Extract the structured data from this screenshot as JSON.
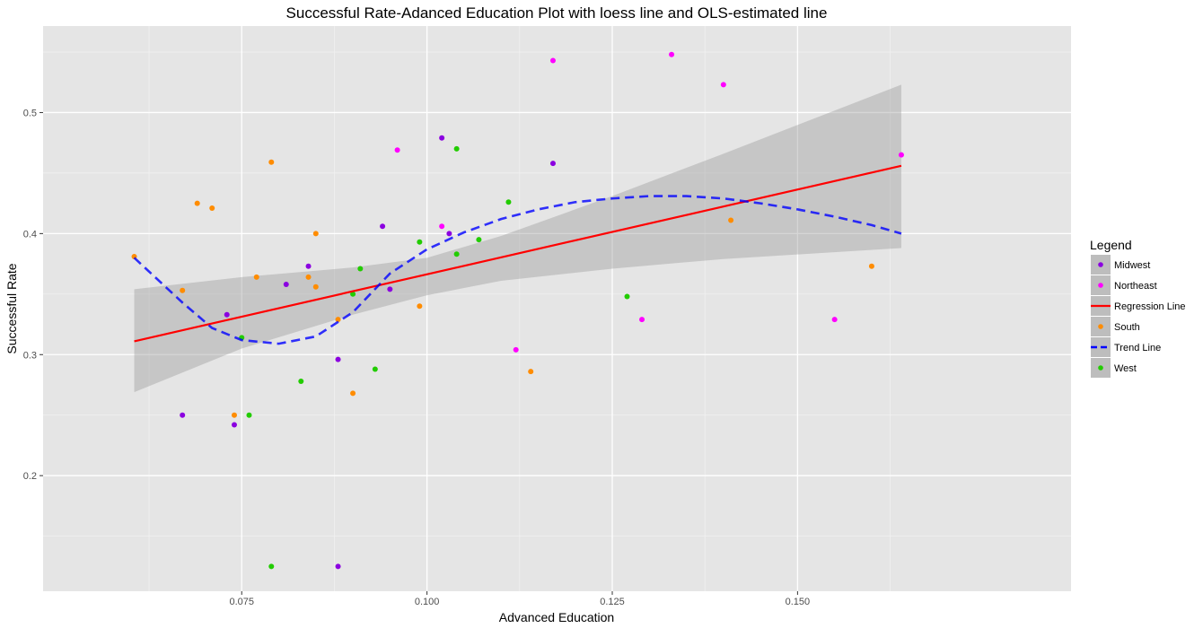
{
  "chart_data": {
    "type": "scatter",
    "title": "Successful Rate-Adanced Education Plot with loess line and OLS-estimated line",
    "xlabel": "Advanced Education",
    "ylabel": "Successful Rate",
    "xlim": [
      0.0482,
      0.1869
    ],
    "ylim": [
      0.1045,
      0.5715
    ],
    "x_ticks": [
      {
        "value": 0.075,
        "label": "0.075"
      },
      {
        "value": 0.1,
        "label": "0.100"
      },
      {
        "value": 0.125,
        "label": "0.125"
      },
      {
        "value": 0.15,
        "label": "0.150"
      }
    ],
    "y_ticks": [
      {
        "value": 0.2,
        "label": "0.2"
      },
      {
        "value": 0.3,
        "label": "0.3"
      },
      {
        "value": 0.4,
        "label": "0.4"
      },
      {
        "value": 0.5,
        "label": "0.5"
      }
    ],
    "grid": true,
    "legend": {
      "title": "Legend",
      "position": "right",
      "entries": [
        {
          "label": "Midwest",
          "kind": "point",
          "color": "#8B00E0"
        },
        {
          "label": "Northeast",
          "kind": "point",
          "color": "#FF00FF"
        },
        {
          "label": "Regression Line",
          "kind": "solid",
          "color": "#FF0000"
        },
        {
          "label": "South",
          "kind": "point",
          "color": "#FF8C00"
        },
        {
          "label": "Trend Line",
          "kind": "dashed",
          "color": "#0000FF"
        },
        {
          "label": "West",
          "kind": "point",
          "color": "#22CC00"
        }
      ]
    },
    "series": [
      {
        "name": "Midwest",
        "color": "#8B00E0",
        "points": [
          [
            0.067,
            0.25
          ],
          [
            0.073,
            0.333
          ],
          [
            0.074,
            0.242
          ],
          [
            0.081,
            0.358
          ],
          [
            0.084,
            0.373
          ],
          [
            0.088,
            0.296
          ],
          [
            0.088,
            0.125
          ],
          [
            0.094,
            0.406
          ],
          [
            0.095,
            0.354
          ],
          [
            0.102,
            0.479
          ],
          [
            0.103,
            0.4
          ],
          [
            0.117,
            0.458
          ]
        ]
      },
      {
        "name": "Northeast",
        "color": "#FF00FF",
        "points": [
          [
            0.096,
            0.469
          ],
          [
            0.102,
            0.406
          ],
          [
            0.112,
            0.304
          ],
          [
            0.117,
            0.543
          ],
          [
            0.129,
            0.329
          ],
          [
            0.133,
            0.548
          ],
          [
            0.14,
            0.523
          ],
          [
            0.155,
            0.329
          ],
          [
            0.164,
            0.465
          ]
        ]
      },
      {
        "name": "South",
        "color": "#FF8C00",
        "points": [
          [
            0.0605,
            0.381
          ],
          [
            0.067,
            0.353
          ],
          [
            0.069,
            0.425
          ],
          [
            0.071,
            0.421
          ],
          [
            0.074,
            0.25
          ],
          [
            0.077,
            0.364
          ],
          [
            0.079,
            0.459
          ],
          [
            0.084,
            0.364
          ],
          [
            0.085,
            0.4
          ],
          [
            0.085,
            0.356
          ],
          [
            0.088,
            0.329
          ],
          [
            0.09,
            0.268
          ],
          [
            0.099,
            0.34
          ],
          [
            0.114,
            0.286
          ],
          [
            0.141,
            0.411
          ],
          [
            0.16,
            0.373
          ]
        ]
      },
      {
        "name": "West",
        "color": "#22CC00",
        "points": [
          [
            0.075,
            0.314
          ],
          [
            0.076,
            0.25
          ],
          [
            0.079,
            0.125
          ],
          [
            0.083,
            0.278
          ],
          [
            0.09,
            0.35
          ],
          [
            0.091,
            0.371
          ],
          [
            0.093,
            0.288
          ],
          [
            0.099,
            0.393
          ],
          [
            0.104,
            0.47
          ],
          [
            0.104,
            0.383
          ],
          [
            0.107,
            0.395
          ],
          [
            0.111,
            0.426
          ],
          [
            0.127,
            0.348
          ]
        ]
      }
    ],
    "regression_line": {
      "name": "Regression Line",
      "color": "#FF0000",
      "points": [
        [
          0.0605,
          0.311
        ],
        [
          0.164,
          0.456
        ]
      ],
      "confidence_band": {
        "x": [
          0.0605,
          0.075,
          0.09,
          0.1,
          0.11,
          0.125,
          0.14,
          0.164
        ],
        "lower": [
          0.269,
          0.305,
          0.333,
          0.349,
          0.361,
          0.371,
          0.379,
          0.388
        ],
        "upper": [
          0.354,
          0.364,
          0.372,
          0.38,
          0.398,
          0.431,
          0.466,
          0.523
        ]
      }
    },
    "trend_line": {
      "name": "Trend Line",
      "color": "#0000FF",
      "points": [
        [
          0.0605,
          0.38
        ],
        [
          0.067,
          0.343
        ],
        [
          0.071,
          0.322
        ],
        [
          0.075,
          0.312
        ],
        [
          0.08,
          0.309
        ],
        [
          0.085,
          0.315
        ],
        [
          0.09,
          0.335
        ],
        [
          0.095,
          0.367
        ],
        [
          0.1,
          0.387
        ],
        [
          0.105,
          0.401
        ],
        [
          0.11,
          0.412
        ],
        [
          0.115,
          0.42
        ],
        [
          0.12,
          0.426
        ],
        [
          0.125,
          0.429
        ],
        [
          0.13,
          0.431
        ],
        [
          0.135,
          0.431
        ],
        [
          0.14,
          0.429
        ],
        [
          0.145,
          0.425
        ],
        [
          0.15,
          0.42
        ],
        [
          0.155,
          0.414
        ],
        [
          0.16,
          0.407
        ],
        [
          0.164,
          0.4
        ]
      ]
    }
  }
}
